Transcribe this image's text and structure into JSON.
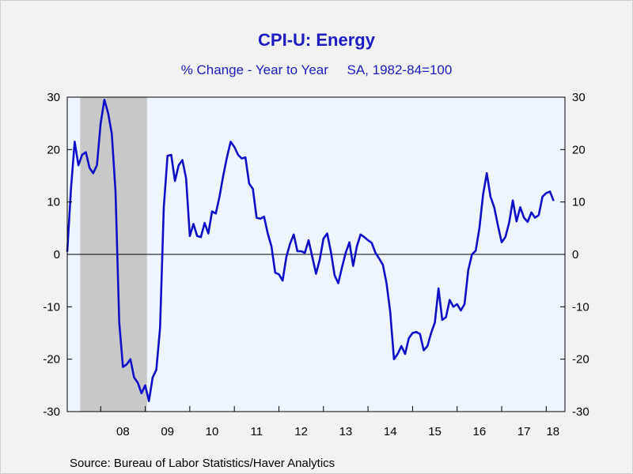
{
  "chart_data": {
    "type": "line",
    "title": "CPI-U: Energy",
    "subtitle": "% Change - Year to Year     SA, 1982-84=100",
    "source": "Source:  Bureau of Labor Statistics/Haver Analytics",
    "ylim": [
      -30,
      30
    ],
    "y_ticks": [
      30,
      20,
      10,
      0,
      -10,
      -20,
      -30
    ],
    "y_tick_labels": [
      "30",
      "20",
      "10",
      "0",
      "-10",
      "-20",
      "-30"
    ],
    "xlim": [
      2007.25,
      2018.42
    ],
    "x_tick_labels": [
      "08",
      "09",
      "10",
      "11",
      "12",
      "13",
      "14",
      "15",
      "16",
      "17",
      "18"
    ],
    "x_tick_centers": [
      2008.5,
      2009.5,
      2010.5,
      2011.5,
      2012.5,
      2013.5,
      2014.5,
      2015.5,
      2016.5,
      2017.5,
      2018.15
    ],
    "x_tick_bounds": [
      2008,
      2009,
      2010,
      2011,
      2012,
      2013,
      2014,
      2015,
      2016,
      2017,
      2018
    ],
    "zero_line": true,
    "plot_bg": "#eef5ff",
    "page_bg": "#f2f2f2",
    "recession_color": "#c8c8c8",
    "line_color": "#0f0fc8",
    "text_color": "#1c1cc0",
    "recessions": [
      [
        2007.54,
        2009.04
      ]
    ],
    "series": [
      {
        "x_start": 2007.25,
        "x_step": 0.08333,
        "values": [
          0.5,
          12.5,
          21.5,
          17.0,
          19.0,
          19.5,
          16.5,
          15.5,
          17.0,
          25.0,
          29.5,
          27.0,
          23.0,
          12.0,
          -13.0,
          -21.5,
          -21.0,
          -20.0,
          -23.5,
          -24.5,
          -26.5,
          -25.0,
          -28.0,
          -23.5,
          -22.0,
          -14.0,
          9.0,
          18.8,
          19.0,
          14.0,
          17.0,
          18.0,
          14.5,
          3.5,
          5.8,
          3.5,
          3.3,
          6.0,
          4.0,
          8.2,
          7.8,
          11.0,
          15.0,
          18.5,
          21.5,
          20.5,
          19.0,
          18.3,
          18.5,
          13.5,
          12.5,
          7.0,
          6.8,
          7.2,
          4.0,
          1.5,
          -3.5,
          -3.8,
          -5.0,
          -0.5,
          2.0,
          3.8,
          0.6,
          0.6,
          0.3,
          2.7,
          -0.5,
          -3.7,
          -1.0,
          3.0,
          4.0,
          0.5,
          -4.0,
          -5.5,
          -2.5,
          0.3,
          2.3,
          -2.2,
          1.5,
          3.8,
          3.3,
          2.7,
          2.2,
          0.3,
          -0.8,
          -2.0,
          -5.5,
          -11.0,
          -20.0,
          -19.0,
          -17.5,
          -19.0,
          -16.0,
          -15.0,
          -14.8,
          -15.2,
          -18.3,
          -17.5,
          -15.0,
          -13.0,
          -6.5,
          -12.5,
          -12.0,
          -8.7,
          -10.0,
          -9.5,
          -10.7,
          -9.5,
          -3.0,
          0.0,
          0.7,
          5.0,
          11.5,
          15.5,
          11.0,
          9.0,
          5.5,
          2.3,
          3.3,
          6.0,
          10.3,
          6.3,
          9.0,
          7.0,
          6.2,
          8.0,
          7.0,
          7.5,
          11.0,
          11.7,
          12.0,
          10.2
        ]
      }
    ]
  }
}
